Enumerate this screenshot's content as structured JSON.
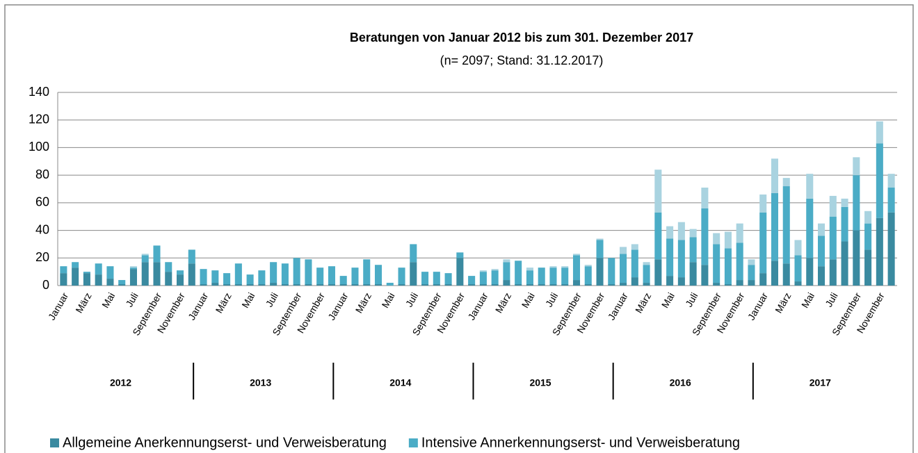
{
  "chart_data": {
    "type": "stacked_bar",
    "title": "Beratungen von Januar 2012 bis zum 301. Dezember 2017",
    "subtitle": "(n= 2097; Stand: 31.12.2017)",
    "categories": [
      "Januar",
      null,
      "März",
      null,
      "Mai",
      null,
      "Juli",
      null,
      "September",
      null,
      "November",
      null,
      "Januar",
      null,
      "März",
      null,
      "Mai",
      null,
      "Juli",
      null,
      "September",
      null,
      "November",
      null,
      "Januar",
      null,
      "März",
      null,
      "Mai",
      null,
      "Juli",
      null,
      "September",
      null,
      "November",
      null,
      "Januar",
      null,
      "März",
      null,
      "Mai",
      null,
      "Juli",
      null,
      "September",
      null,
      "November",
      null,
      "Januar",
      null,
      "März",
      null,
      "Mai",
      null,
      "Juli",
      null,
      "September",
      null,
      "November",
      null,
      "Januar",
      null,
      "März",
      null,
      "Mai",
      null,
      "Juli",
      null,
      "September",
      null,
      "November",
      null
    ],
    "years": [
      "2012",
      "2013",
      "2014",
      "2015",
      "2016",
      "2017"
    ],
    "series": [
      {
        "name": "Allgemeine Anerkennungserst- und Verweisberatung",
        "color": "#3a8aa0",
        "values": [
          9,
          13,
          9,
          8,
          5,
          1,
          12,
          17,
          17,
          10,
          8,
          16,
          1,
          2,
          1,
          1,
          1,
          1,
          2,
          1,
          1,
          1,
          1,
          1,
          1,
          1,
          1,
          1,
          0,
          1,
          17,
          1,
          1,
          1,
          20,
          1,
          1,
          1,
          4,
          1,
          1,
          1,
          1,
          1,
          4,
          1,
          20,
          1,
          2,
          6,
          2,
          19,
          7,
          6,
          17,
          15,
          2,
          1,
          4,
          4,
          9,
          18,
          16,
          3,
          20,
          14,
          19,
          32,
          40,
          26,
          49,
          53
        ]
      },
      {
        "name": "Intensive Annerkennungserst- und Verweisberatung",
        "color": "#4bacc6",
        "values": [
          5,
          4,
          1,
          8,
          9,
          3,
          1,
          5,
          12,
          7,
          3,
          10,
          11,
          9,
          8,
          15,
          7,
          10,
          15,
          15,
          19,
          18,
          12,
          13,
          6,
          12,
          18,
          14,
          2,
          12,
          13,
          9,
          9,
          8,
          4,
          6,
          9,
          10,
          13,
          17,
          10,
          12,
          12,
          12,
          18,
          13,
          13,
          19,
          21,
          20,
          13,
          34,
          27,
          27,
          18,
          41,
          28,
          26,
          27,
          11,
          44,
          49,
          56,
          19,
          43,
          22,
          31,
          25,
          40,
          19,
          54,
          18
        ]
      },
      {
        "color": "#a9d3e0",
        "values": [
          0,
          0,
          0,
          0,
          0,
          0,
          1,
          1,
          0,
          0,
          0,
          0,
          0,
          0,
          0,
          0,
          0,
          0,
          0,
          0,
          0,
          0,
          0,
          0,
          0,
          0,
          0,
          0,
          0,
          0,
          0,
          0,
          0,
          0,
          0,
          0,
          1,
          1,
          2,
          0,
          2,
          0,
          1,
          1,
          1,
          1,
          1,
          0,
          5,
          4,
          2,
          31,
          9,
          13,
          6,
          15,
          8,
          12,
          14,
          4,
          13,
          25,
          6,
          11,
          18,
          9,
          15,
          6,
          13,
          9,
          16,
          10
        ]
      }
    ],
    "ylim": [
      0,
      140
    ],
    "yticks": [
      0,
      20,
      40,
      60,
      80,
      100,
      120,
      140
    ],
    "grid": true
  }
}
